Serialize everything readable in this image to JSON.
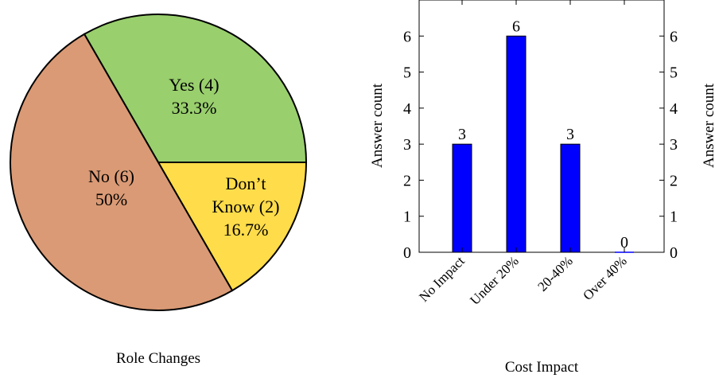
{
  "chart_data": [
    {
      "type": "pie",
      "title": "Role Changes",
      "slices": [
        {
          "name": "Yes",
          "count": 4,
          "percent": "33.3%",
          "label_lines": [
            "Yes (4)",
            "33.3%"
          ],
          "color": "#99cf6d"
        },
        {
          "name": "Don't Know",
          "count": 2,
          "percent": "16.7%",
          "label_lines": [
            "Don’t",
            "Know (2)",
            "16.7%"
          ],
          "color": "#ffdc4a"
        },
        {
          "name": "No",
          "count": 6,
          "percent": "50%",
          "label_lines": [
            "No (6)",
            "50%"
          ],
          "color": "#da9a75"
        }
      ]
    },
    {
      "type": "bar",
      "title": "Cost Impact",
      "categories": [
        "No Impact",
        "Under 20%",
        "20-40%",
        "Over 40%"
      ],
      "values": [
        3,
        6,
        3,
        0
      ],
      "data_labels": [
        "3",
        "6",
        "3",
        "0"
      ],
      "ylabel": "Answer count",
      "ylabel_right": "Answer count",
      "ylim": [
        0,
        7
      ],
      "yticks": [
        "0",
        "1",
        "2",
        "3",
        "4",
        "5",
        "6"
      ],
      "bar_color": "#0000ff",
      "grid": false
    }
  ]
}
